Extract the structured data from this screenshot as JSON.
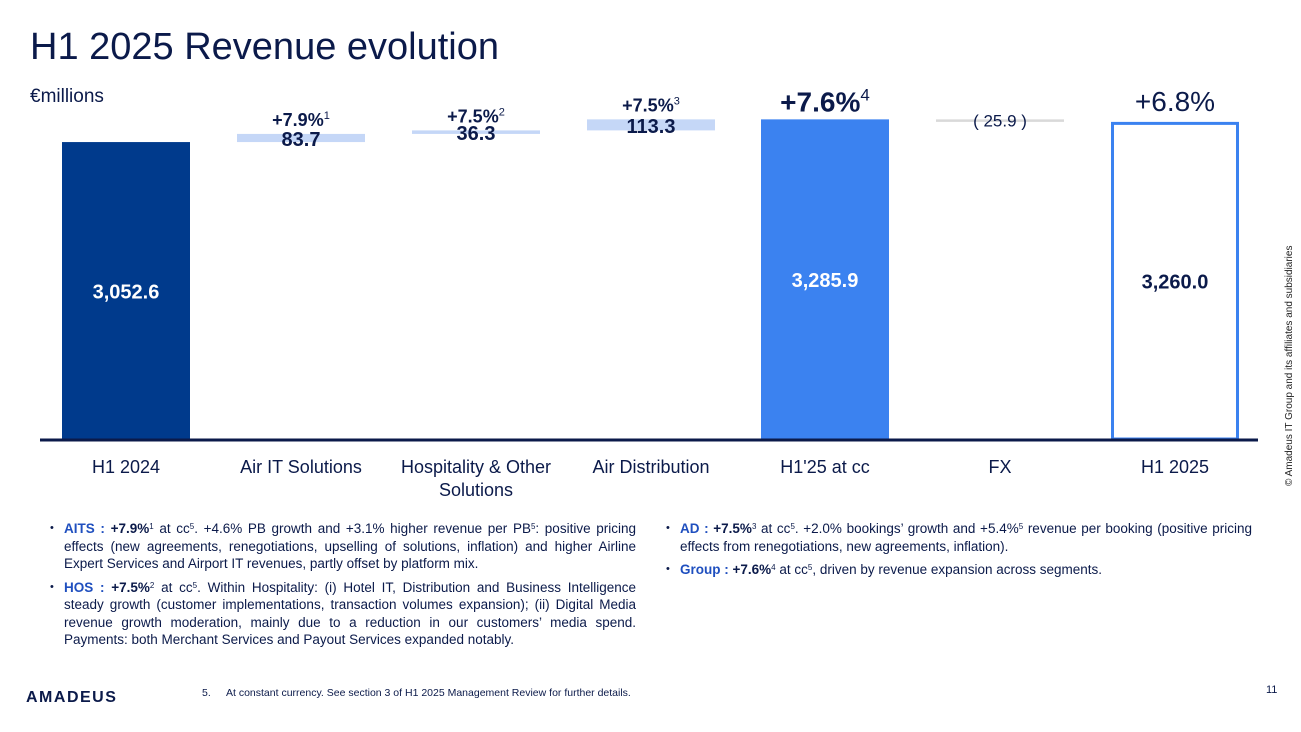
{
  "title": "H1 2025 Revenue evolution",
  "unit_label": "€millions",
  "chart_data": {
    "type": "bar",
    "subtype": "waterfall",
    "categories": [
      "H1 2024",
      "Air IT Solutions",
      "Hospitality & Other Solutions",
      "Air Distribution",
      "H1'25 at cc",
      "FX",
      "H1 2025"
    ],
    "values": [
      3052.6,
      83.7,
      36.3,
      113.3,
      3285.9,
      -25.9,
      3260.0
    ],
    "value_labels": [
      "3,052.6",
      "83.7",
      "36.3",
      "113.3",
      "3,285.9",
      "( 25.9 )",
      "3,260.0"
    ],
    "growth_labels": [
      "",
      "+7.9%",
      "+7.5%",
      "+7.5%",
      "+7.6%",
      "",
      "+6.8%"
    ],
    "growth_footnotes": [
      "",
      "1",
      "2",
      "3",
      "4",
      "",
      ""
    ],
    "bar_kinds": [
      "total",
      "increase",
      "increase",
      "increase",
      "subtotal",
      "decrease",
      "total-outline"
    ],
    "colors": {
      "total": "#003a8c",
      "increase": "#c5d7f7",
      "subtotal": "#3b82f0",
      "decrease": "#d9d9d9",
      "outline": "#3b82f0",
      "axis": "#0b1a4a",
      "text_dark": "#0b1a4a"
    },
    "ylim": [
      0,
      3300
    ]
  },
  "bullets": {
    "left": [
      {
        "key": "AITS",
        "growth": "+7.9%",
        "growth_sup": "1",
        "text_pre": "at cc",
        "text_pre_sup": "5",
        "text_mid": ". +4.6% PB growth and +3.1% higher revenue per PB",
        "text_mid_sup": "5",
        "text_post": ": positive pricing effects (new agreements, renegotiations, upselling of solutions, inflation) and higher Airline Expert Services and Airport IT revenues, partly offset by platform mix."
      },
      {
        "key": "HOS",
        "growth": "+7.5%",
        "growth_sup": "2",
        "text_pre": "at cc",
        "text_pre_sup": "5",
        "text_post": ". Within Hospitality: (i) Hotel IT, Distribution and Business Intelligence steady growth (customer implementations, transaction volumes expansion); (ii) Digital Media revenue growth moderation, mainly due to a reduction in our customers’ media spend. Payments: both Merchant Services and Payout Services expanded notably."
      }
    ],
    "right": [
      {
        "key": "AD",
        "growth": "+7.5%",
        "growth_sup": "3",
        "text_pre": "at cc",
        "text_pre_sup": "5",
        "text_mid": ". +2.0% bookings’ growth and +5.4%",
        "text_mid_sup": "5",
        "text_post": "revenue per booking (positive pricing effects from renegotiations, new agreements, inflation)."
      },
      {
        "key": "Group",
        "growth": "+7.6%",
        "growth_sup": "4",
        "text_pre": "at cc",
        "text_pre_sup": "5",
        "text_post": ", driven by revenue expansion across segments."
      }
    ]
  },
  "footnote": {
    "number": "5.",
    "text": "At constant currency. See section 3 of H1 2025 Management Review for further details."
  },
  "logo_text": "amadeus",
  "page_number": "11",
  "copyright": "© Amadeus IT Group and its affiliates and subsidiaries"
}
